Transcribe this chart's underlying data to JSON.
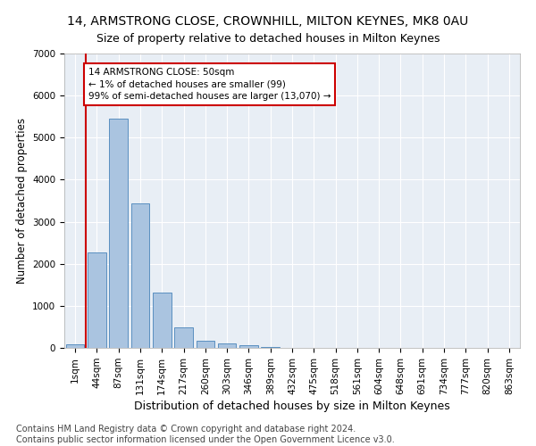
{
  "title": "14, ARMSTRONG CLOSE, CROWNHILL, MILTON KEYNES, MK8 0AU",
  "subtitle": "Size of property relative to detached houses in Milton Keynes",
  "xlabel": "Distribution of detached houses by size in Milton Keynes",
  "ylabel": "Number of detached properties",
  "footnote": "Contains HM Land Registry data © Crown copyright and database right 2024.\nContains public sector information licensed under the Open Government Licence v3.0.",
  "bar_labels": [
    "1sqm",
    "44sqm",
    "87sqm",
    "131sqm",
    "174sqm",
    "217sqm",
    "260sqm",
    "303sqm",
    "346sqm",
    "389sqm",
    "432sqm",
    "475sqm",
    "518sqm",
    "561sqm",
    "604sqm",
    "648sqm",
    "691sqm",
    "734sqm",
    "777sqm",
    "820sqm",
    "863sqm"
  ],
  "bar_values": [
    80,
    2270,
    5450,
    3440,
    1310,
    480,
    170,
    110,
    60,
    30,
    0,
    0,
    0,
    0,
    0,
    0,
    0,
    0,
    0,
    0,
    0
  ],
  "bar_color": "#aac4e0",
  "bar_edgecolor": "#5a8fc0",
  "annotation_box_text": "14 ARMSTRONG CLOSE: 50sqm\n← 1% of detached houses are smaller (99)\n99% of semi-detached houses are larger (13,070) →",
  "annotation_box_color": "#cc0000",
  "vline_x_index": 0.5,
  "ylim": [
    0,
    7000
  ],
  "yticks": [
    0,
    1000,
    2000,
    3000,
    4000,
    5000,
    6000,
    7000
  ],
  "bg_color": "#e8eef5",
  "grid_color": "#ffffff",
  "title_fontsize": 10,
  "subtitle_fontsize": 9,
  "axis_fontsize": 8.5,
  "tick_fontsize": 7.5,
  "footnote_fontsize": 7
}
